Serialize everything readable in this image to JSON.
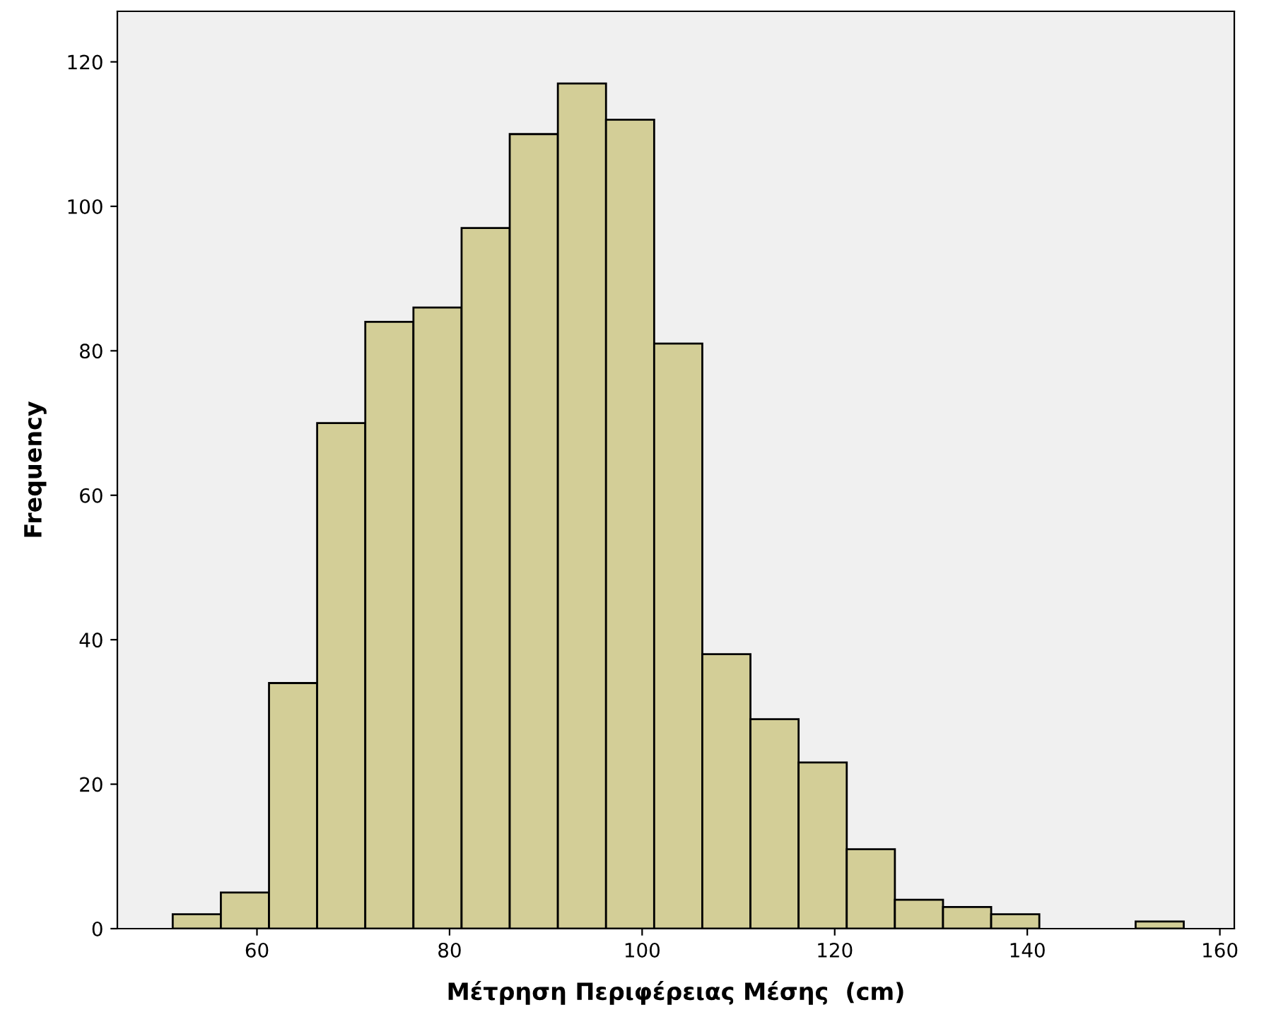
{
  "chart_data": {
    "type": "histogram",
    "xlabel": "Μέτρηση Περιφέρειας Μέσης  (cm)",
    "ylabel": "Frequency",
    "bins": [
      51.25,
      56.25,
      61.25,
      66.25,
      71.25,
      76.25,
      81.25,
      86.25,
      91.25,
      96.25,
      101.25,
      106.25,
      111.25,
      116.25,
      121.25,
      126.25,
      131.25,
      136.25,
      141.25,
      146.25,
      151.25,
      156.25
    ],
    "values": [
      2,
      5,
      34,
      70,
      84,
      86,
      97,
      110,
      117,
      112,
      81,
      38,
      29,
      23,
      11,
      4,
      3,
      2,
      0,
      0,
      1
    ],
    "color": "#d3ce97",
    "xlim": [
      45.5,
      161.5
    ],
    "ylim": [
      0,
      127
    ],
    "xticks": [
      60,
      80,
      100,
      120,
      140,
      160
    ],
    "yticks": [
      0,
      20,
      40,
      60,
      80,
      100,
      120
    ],
    "grid": false,
    "legend": false
  }
}
